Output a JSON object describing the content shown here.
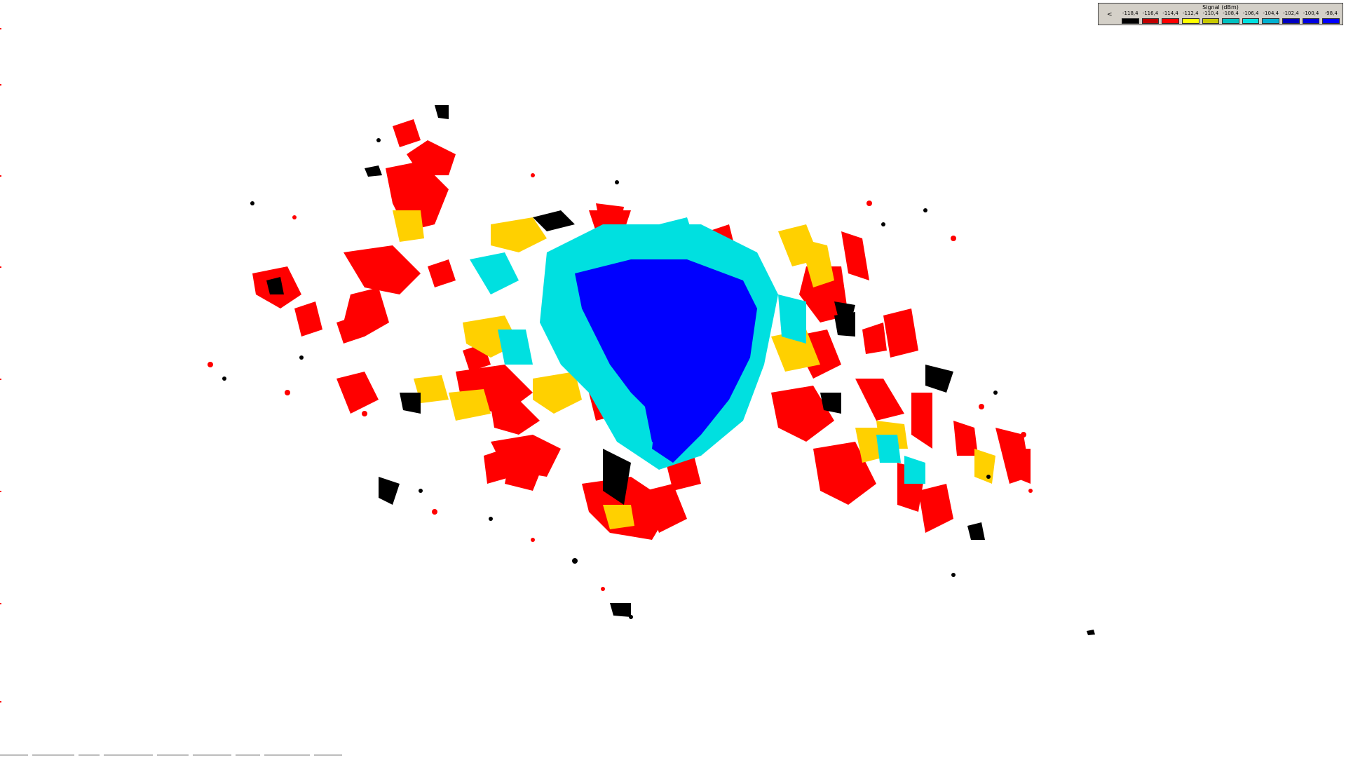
{
  "legend": {
    "title": "Signal (dBm)",
    "arrow": "<",
    "bins": [
      {
        "label": "-118,4",
        "color": "#000000"
      },
      {
        "label": "-116,4",
        "color": "#c00000"
      },
      {
        "label": "-114,4",
        "color": "#ff0000"
      },
      {
        "label": "-112,4",
        "color": "#ffff00"
      },
      {
        "label": "-110,4",
        "color": "#c8c800"
      },
      {
        "label": "-108,4",
        "color": "#00c0c0"
      },
      {
        "label": "-106,4",
        "color": "#00e0e0"
      },
      {
        "label": "-104,4",
        "color": "#00b0d0"
      },
      {
        "label": "-102,4",
        "color": "#0000c0"
      },
      {
        "label": "-100,4",
        "color": "#0000e0"
      },
      {
        "label": "-98,4",
        "color": "#0000ff"
      }
    ]
  },
  "coverage_colors": {
    "very_weak": "#000000",
    "weak": "#ff0000",
    "medium_low": "#ffd000",
    "medium": "#00e0e0",
    "strong": "#0000ff"
  }
}
